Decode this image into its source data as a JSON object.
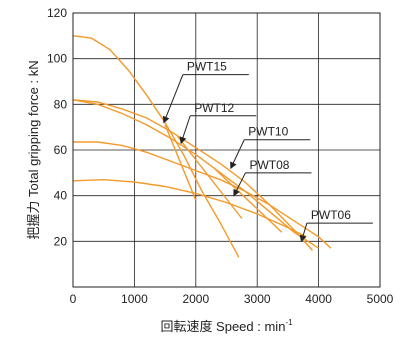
{
  "chart_data": {
    "type": "line",
    "title": "",
    "xlabel": "回転速度 Speed : min",
    "xlabel_sup": "-1",
    "ylabel": "把握力 Total gripping force : kN",
    "xlim": [
      0,
      5000
    ],
    "ylim": [
      0,
      120
    ],
    "x_ticks": [
      0,
      1000,
      2000,
      3000,
      4000,
      5000
    ],
    "y_ticks": [
      20,
      40,
      60,
      80,
      100,
      120
    ],
    "grid": true,
    "line_color": "#f39a2b",
    "series": [
      {
        "name": "PWT15",
        "points": [
          [
            0,
            110
          ],
          [
            300,
            109
          ],
          [
            600,
            104
          ],
          [
            900,
            95
          ],
          [
            1200,
            84
          ],
          [
            1500,
            72
          ],
          [
            1800,
            58
          ],
          [
            2100,
            42
          ],
          [
            2400,
            28
          ],
          [
            2700,
            13
          ]
        ],
        "tail_points": [
          [
            1500,
            71
          ],
          [
            2000,
            38
          ]
        ]
      },
      {
        "name": "PWT12",
        "points": [
          [
            0,
            82
          ],
          [
            400,
            81
          ],
          [
            800,
            78
          ],
          [
            1200,
            74
          ],
          [
            1600,
            68
          ],
          [
            2000,
            61
          ],
          [
            2400,
            54
          ],
          [
            2800,
            46
          ],
          [
            3200,
            36
          ],
          [
            3600,
            25
          ],
          [
            3900,
            16
          ]
        ],
        "tail_points": [
          [
            1700,
            66
          ],
          [
            2750,
            30
          ]
        ]
      },
      {
        "name": "PWT10",
        "points": [
          [
            0,
            82
          ],
          [
            400,
            80
          ],
          [
            800,
            76
          ],
          [
            1200,
            71
          ],
          [
            1600,
            65
          ],
          [
            2000,
            58
          ],
          [
            2400,
            50
          ],
          [
            2800,
            42
          ],
          [
            3200,
            33
          ],
          [
            3600,
            24
          ],
          [
            4000,
            17
          ]
        ],
        "tail_points": [
          [
            2300,
            52
          ],
          [
            3400,
            24
          ]
        ]
      },
      {
        "name": "PWT08",
        "points": [
          [
            0,
            63.5
          ],
          [
            400,
            63.5
          ],
          [
            800,
            62
          ],
          [
            1200,
            59
          ],
          [
            1600,
            55
          ],
          [
            2000,
            51
          ],
          [
            2400,
            47
          ],
          [
            2800,
            42
          ],
          [
            3200,
            36
          ],
          [
            3600,
            29
          ],
          [
            4000,
            22
          ],
          [
            4200,
            17
          ]
        ]
      },
      {
        "name": "PWT06",
        "points": [
          [
            0,
            46.5
          ],
          [
            500,
            47
          ],
          [
            1000,
            46
          ],
          [
            1500,
            44
          ],
          [
            2000,
            41
          ],
          [
            2500,
            37
          ],
          [
            3000,
            32
          ],
          [
            3500,
            26
          ],
          [
            3800,
            22
          ]
        ]
      }
    ],
    "callouts": [
      {
        "text": "PWT15",
        "label_x": 2180,
        "label_y": 93,
        "tip_x": 1480,
        "tip_y": 72
      },
      {
        "text": "PWT12",
        "label_x": 2300,
        "label_y": 75,
        "tip_x": 1760,
        "tip_y": 63
      },
      {
        "text": "PWT10",
        "label_x": 3180,
        "label_y": 64.5,
        "tip_x": 2570,
        "tip_y": 52
      },
      {
        "text": "PWT08",
        "label_x": 3200,
        "label_y": 50,
        "tip_x": 2620,
        "tip_y": 40
      },
      {
        "text": "PWT06",
        "label_x": 4200,
        "label_y": 28,
        "tip_x": 3720,
        "tip_y": 20
      }
    ]
  }
}
